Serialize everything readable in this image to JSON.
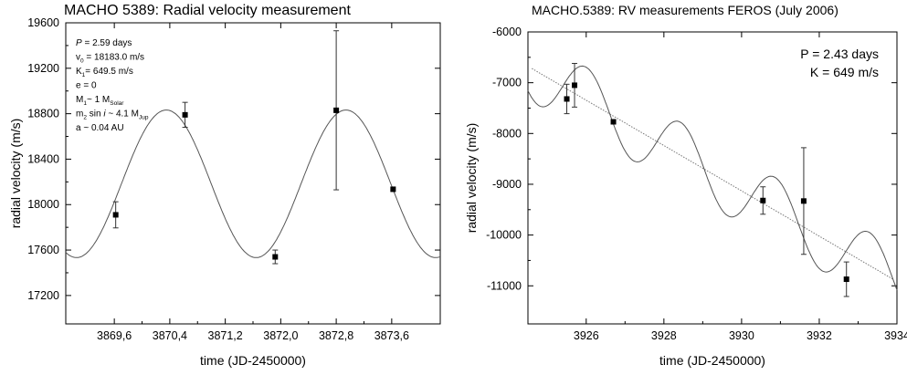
{
  "chart_data": [
    {
      "type": "scatter",
      "title": "MACHO 5389: Radial velocity measurement",
      "xlabel": "time (JD-2450000)",
      "ylabel": "radial velocity (m/s)",
      "xlim": [
        3868.9,
        3874.3
      ],
      "ylim": [
        16950,
        19600
      ],
      "xticks": [
        3869.6,
        3870.4,
        3871.2,
        3872.0,
        3872.8,
        3873.6
      ],
      "xtick_labels": [
        "3869,6",
        "3870,4",
        "3871,2",
        "3872,0",
        "3872,8",
        "3873,6"
      ],
      "yticks": [
        17200,
        17600,
        18000,
        18400,
        18800,
        19200,
        19600
      ],
      "ytick_labels": [
        "17200",
        "17600",
        "18000",
        "18400",
        "18800",
        "19200",
        "19600"
      ],
      "grid": false,
      "points": [
        {
          "x": 3869.62,
          "y": 17910,
          "err": 115
        },
        {
          "x": 3870.62,
          "y": 18790,
          "err": 110
        },
        {
          "x": 3871.92,
          "y": 17540,
          "err": 60
        },
        {
          "x": 3872.8,
          "y": 18830,
          "err": 700
        },
        {
          "x": 3873.62,
          "y": 18135,
          "err": 0
        }
      ],
      "model": {
        "type": "sine",
        "period": 2.59,
        "amplitude": 649.5,
        "offset": 18183.0,
        "peak_at": 3870.35
      },
      "annotation_lines": [
        {
          "pre": "P",
          "pre_italic": true,
          "post": " = 2.59 days"
        },
        {
          "pre": "v",
          "sub": "0",
          "post": " = 18183.0 m/s"
        },
        {
          "pre": "K",
          "sub": "1",
          "post": "= 649.5 m/s"
        },
        {
          "pre": "e = 0"
        },
        {
          "pre": "M",
          "sub": "1",
          "post": "~ 1 M",
          "sub2": "Solar"
        },
        {
          "pre": "m",
          "sub": "2",
          "post": " sin ",
          "italic": "i",
          "post2": " ~ 4.1 M",
          "sub2": "Jup"
        },
        {
          "pre": "a ~ 0.04 AU"
        }
      ]
    },
    {
      "type": "scatter",
      "title": "MACHO.5389: RV measurements FEROS (July 2006)",
      "xlabel": "time (JD-2450000)",
      "ylabel": "radial velocity (m/s)",
      "xlim": [
        3924.5,
        3934
      ],
      "ylim": [
        -11750,
        -6000
      ],
      "xticks": [
        3926,
        3928,
        3930,
        3932,
        3934
      ],
      "xtick_labels": [
        "3926",
        "3928",
        "3930",
        "3932",
        "3934"
      ],
      "yticks": [
        -11000,
        -10000,
        -9000,
        -8000,
        -7000,
        -6000
      ],
      "ytick_labels": [
        "-11000",
        "-10000",
        "-9000",
        "-8000",
        "-7000",
        "-6000"
      ],
      "grid": false,
      "points": [
        {
          "x": 3925.5,
          "y": -7320,
          "err": 290
        },
        {
          "x": 3925.7,
          "y": -7050,
          "err": 430
        },
        {
          "x": 3926.7,
          "y": -7770,
          "err": 0
        },
        {
          "x": 3930.55,
          "y": -9320,
          "err": 270
        },
        {
          "x": 3931.6,
          "y": -9330,
          "err": 1050
        },
        {
          "x": 3932.7,
          "y": -10870,
          "err": 340
        }
      ],
      "trend": {
        "x": [
          3924.6,
          3933.9
        ],
        "y": [
          -6720,
          -10870
        ]
      },
      "model": {
        "type": "sine_plus_trend",
        "period": 2.43,
        "amplitude": 649,
        "peak_at": 3926.0
      },
      "annotations": [
        "P = 2.43 days",
        "K = 649 m/s"
      ]
    }
  ]
}
